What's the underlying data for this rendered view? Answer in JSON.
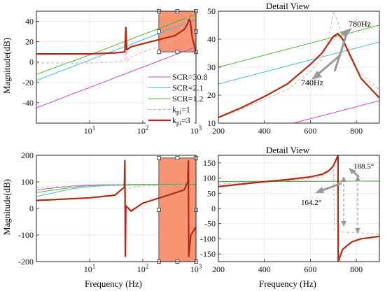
{
  "figure": {
    "panels": {
      "tl": {
        "title": "",
        "ylabel": "Magnitude(dB)",
        "xlabel": ""
      },
      "tr": {
        "title": "Detail View",
        "ylabel": "",
        "xlabel": ""
      },
      "bl": {
        "title": "",
        "ylabel": "Magnitude(dB)",
        "xlabel": "Frequency (Hz)"
      },
      "br": {
        "title": "Detail View",
        "ylabel": "",
        "xlabel": "Frequency (Hz)"
      }
    },
    "colors": {
      "scr308": "#cc44cc",
      "scr21": "#44b8e0",
      "scr12": "#44bb22",
      "kpi1": "#e8a8a8",
      "kpi3": "#b02a14",
      "highlight_fill": "#f4815a",
      "highlight_edge": "#555555"
    }
  },
  "legend": [
    {
      "key": "scr308",
      "label": "SCR=30.8",
      "style": "solid"
    },
    {
      "key": "scr21",
      "label": "SCR=2.1",
      "style": "solid"
    },
    {
      "key": "scr12",
      "label": "SCR=1.2",
      "style": "solid"
    },
    {
      "key": "kpi1",
      "label": "kpi=1",
      "base": "k",
      "sub": "pi",
      "suffix": "=1",
      "style": "dashed"
    },
    {
      "key": "kpi3",
      "label": "kpi=3",
      "base": "k",
      "sub": "pi",
      "suffix": "=3",
      "style": "thick"
    }
  ],
  "annotations": {
    "tr_upper": "780Hz",
    "tr_lower": "740Hz",
    "br_left": "164.2°",
    "br_right": "188.5°"
  },
  "chart_data": [
    {
      "id": "tl",
      "type": "line",
      "xscale": "log",
      "xlim": [
        1,
        1000
      ],
      "ylim": [
        -60,
        50
      ],
      "xticks": [
        10,
        100,
        1000
      ],
      "xticklabels": [
        "10^1",
        "10^2",
        "10^3"
      ],
      "yticks": [
        -40,
        -20,
        0,
        20,
        40
      ],
      "highlight_region": {
        "x": [
          200,
          1000
        ],
        "y": [
          10,
          50
        ]
      },
      "series": [
        {
          "key": "scr308",
          "x": [
            1,
            10,
            100,
            1000
          ],
          "y": [
            -45,
            -25,
            -5,
            15
          ]
        },
        {
          "key": "scr21",
          "x": [
            1,
            10,
            100,
            1000
          ],
          "y": [
            -18,
            2,
            22,
            42
          ]
        },
        {
          "key": "scr12",
          "x": [
            1,
            10,
            100,
            1000
          ],
          "y": [
            -12,
            7,
            27,
            47
          ]
        },
        {
          "key": "kpi1",
          "x": [
            1,
            10,
            30,
            46,
            48,
            50,
            60,
            100,
            200,
            400,
            600,
            650,
            700,
            740,
            800,
            1000
          ],
          "y": [
            -1,
            -1,
            0,
            2,
            18,
            1,
            5,
            10,
            15,
            22,
            30,
            38,
            46,
            38,
            22,
            8
          ]
        },
        {
          "key": "kpi3",
          "x": [
            1,
            10,
            30,
            46,
            48,
            50,
            60,
            100,
            200,
            400,
            600,
            700,
            740,
            780,
            850,
            1000
          ],
          "y": [
            8,
            8,
            9,
            10,
            34,
            12,
            15,
            18,
            22,
            26,
            32,
            38,
            42,
            40,
            24,
            10
          ]
        }
      ]
    },
    {
      "id": "tr",
      "type": "line",
      "xlim": [
        200,
        900
      ],
      "ylim": [
        10,
        50
      ],
      "xticks": [
        200,
        400,
        600,
        800
      ],
      "xticklabels": [
        "200",
        "400",
        "600",
        "800"
      ],
      "yticks": [
        10,
        20,
        30,
        40,
        50
      ],
      "series": [
        {
          "key": "scr308",
          "x": [
            200,
            900
          ],
          "y": [
            3,
            18
          ]
        },
        {
          "key": "scr21",
          "x": [
            200,
            900
          ],
          "y": [
            24,
            39
          ]
        },
        {
          "key": "scr12",
          "x": [
            200,
            900
          ],
          "y": [
            30,
            45
          ]
        },
        {
          "key": "kpi1",
          "x": [
            200,
            300,
            400,
            500,
            600,
            650,
            680,
            700,
            720,
            750,
            800,
            900
          ],
          "y": [
            12,
            15,
            18.5,
            22,
            28.5,
            33,
            40,
            50,
            46,
            37,
            29,
            22
          ]
        },
        {
          "key": "kpi3",
          "x": [
            200,
            300,
            400,
            500,
            600,
            650,
            700,
            720,
            740,
            780,
            820,
            900
          ],
          "y": [
            12,
            15.5,
            19.5,
            24,
            31,
            35,
            41,
            42,
            40,
            33,
            26,
            19
          ]
        }
      ]
    },
    {
      "id": "bl",
      "type": "line",
      "xscale": "log",
      "xlim": [
        1,
        1000
      ],
      "ylim": [
        -200,
        200
      ],
      "xticks": [
        10,
        100,
        1000
      ],
      "xticklabels": [
        "10^1",
        "10^2",
        "10^3"
      ],
      "yticks": [
        -200,
        -100,
        0,
        100,
        200
      ],
      "highlight_region": {
        "x": [
          200,
          1000
        ],
        "y": [
          -200,
          190
        ]
      },
      "series": [
        {
          "key": "scr308",
          "x": [
            1,
            5,
            10,
            20,
            100,
            1000
          ],
          "y": [
            70,
            85,
            88,
            89,
            90,
            90
          ]
        },
        {
          "key": "scr21",
          "x": [
            1,
            5,
            10,
            20,
            100,
            1000
          ],
          "y": [
            45,
            75,
            82,
            86,
            89,
            90
          ]
        },
        {
          "key": "scr12",
          "x": [
            1,
            5,
            10,
            20,
            100,
            1000
          ],
          "y": [
            60,
            80,
            86,
            88,
            90,
            90
          ]
        },
        {
          "key": "kpi1",
          "x": [
            1,
            10,
            30,
            45,
            46,
            47,
            48,
            60,
            100,
            300,
            600,
            700,
            720,
            730,
            800,
            1000
          ],
          "y": [
            80,
            85,
            88,
            90,
            140,
            -180,
            60,
            80,
            85,
            85,
            90,
            100,
            150,
            -80,
            -80,
            -85
          ]
        },
        {
          "key": "kpi3",
          "x": [
            1,
            10,
            30,
            45,
            46,
            47,
            48,
            60,
            100,
            300,
            600,
            700,
            720,
            730,
            800,
            1000
          ],
          "y": [
            30,
            40,
            50,
            80,
            180,
            -180,
            10,
            -10,
            20,
            50,
            70,
            100,
            180,
            -180,
            -100,
            -70
          ]
        }
      ]
    },
    {
      "id": "br",
      "type": "line",
      "xlim": [
        200,
        900
      ],
      "ylim": [
        -175,
        175
      ],
      "xticks": [
        200,
        400,
        600,
        800
      ],
      "xticklabels": [
        "200",
        "400",
        "600",
        "800"
      ],
      "yticks": [
        -150,
        -100,
        -50,
        0,
        50,
        100,
        150
      ],
      "series": [
        {
          "key": "scr308",
          "x": [
            200,
            900
          ],
          "y": [
            89,
            90
          ]
        },
        {
          "key": "scr21",
          "x": [
            200,
            900
          ],
          "y": [
            88,
            90
          ]
        },
        {
          "key": "scr12",
          "x": [
            200,
            900
          ],
          "y": [
            88,
            90
          ]
        },
        {
          "key": "kpi1",
          "x": [
            200,
            300,
            400,
            500,
            600,
            650,
            680,
            700,
            705,
            720,
            750,
            800,
            900
          ],
          "y": [
            80,
            84,
            88,
            92,
            98,
            106,
            120,
            140,
            -70,
            -76,
            -78,
            -80,
            -85
          ]
        },
        {
          "key": "kpi3",
          "x": [
            200,
            300,
            400,
            500,
            600,
            650,
            680,
            700,
            720,
            721,
            740,
            780,
            820,
            900
          ],
          "y": [
            72,
            80,
            88,
            95,
            104,
            112,
            124,
            140,
            175,
            -175,
            -135,
            -110,
            -100,
            -92
          ]
        }
      ]
    }
  ]
}
